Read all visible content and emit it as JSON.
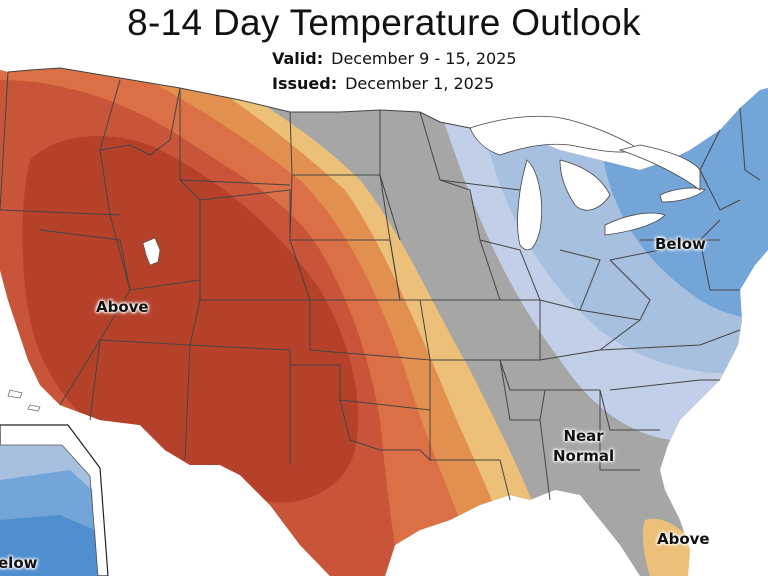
{
  "title": "8-14 Day Temperature Outlook",
  "valid": {
    "label": "Valid:",
    "value": "December 9 - 15, 2025"
  },
  "issued": {
    "label": "Issued:",
    "value": "December 1, 2025"
  },
  "labels": {
    "above_west": "Above",
    "below_northeast": "Below",
    "near_normal_line1": "Near",
    "near_normal_line2": "Normal",
    "above_florida": "Above",
    "below_alaska": "elow"
  },
  "colors": {
    "above_strong": "#b5412a",
    "above_mid": "#c8553a",
    "above_light": "#db6f45",
    "above_lighter": "#e29050",
    "above_lightest": "#ecc078",
    "near_normal": "#a6a6a6",
    "below_light": "#c2cfe8",
    "below_mid": "#a8c0e0",
    "below_strong": "#73a5d9",
    "water": "#ffffff",
    "borders": "#444444"
  }
}
